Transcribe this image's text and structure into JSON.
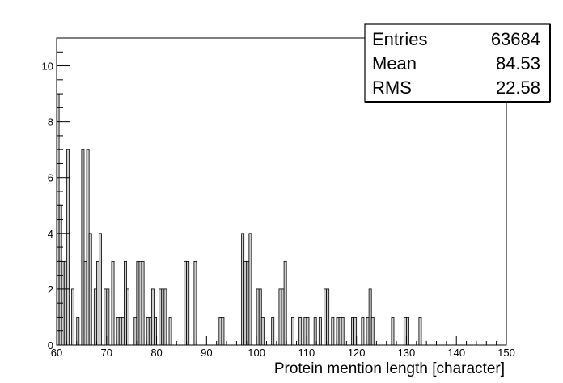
{
  "chart_data": {
    "type": "bar",
    "histogram": true,
    "title": "",
    "xlabel": "Protein mention length [character]",
    "ylabel": "",
    "xlim": [
      60,
      150
    ],
    "ylim": [
      0,
      11
    ],
    "bin_width": 0.5,
    "x_ticks": [
      60,
      70,
      80,
      90,
      100,
      110,
      120,
      130,
      140,
      150
    ],
    "y_ticks": [
      0,
      2,
      4,
      6,
      8,
      10
    ],
    "bin_starts": [
      60,
      60.5,
      61,
      61.5,
      62,
      62.5,
      63,
      63.5,
      64,
      64.5,
      65,
      65.5,
      66,
      66.5,
      67,
      67.5,
      68,
      68.5,
      69,
      69.5,
      70,
      70.5,
      71,
      71.5,
      72,
      72.5,
      73,
      73.5,
      74,
      74.5,
      75,
      75.5,
      76,
      76.5,
      77,
      77.5,
      78,
      78.5,
      79,
      79.5,
      80,
      80.5,
      81,
      81.5,
      82,
      82.5,
      83,
      83.5,
      84,
      84.5,
      85,
      85.5,
      86,
      86.5,
      87,
      87.5,
      88,
      88.5,
      89,
      89.5,
      90,
      90.5,
      91,
      91.5,
      92,
      92.5,
      93,
      93.5,
      94,
      94.5,
      95,
      95.5,
      96,
      96.5,
      97,
      97.5,
      98,
      98.5,
      99,
      99.5,
      100,
      100.5,
      101,
      101.5,
      102,
      102.5,
      103,
      103.5,
      104,
      104.5,
      105,
      105.5,
      106,
      106.5,
      107,
      107.5,
      108,
      108.5,
      109,
      109.5,
      110,
      110.5,
      111,
      111.5,
      112,
      112.5,
      113,
      113.5,
      114,
      114.5,
      115,
      115.5,
      116,
      116.5,
      117,
      117.5,
      118,
      118.5,
      119,
      119.5,
      120,
      120.5,
      121,
      121.5,
      122,
      122.5,
      123,
      123.5,
      124,
      124.5,
      125,
      125.5,
      126,
      126.5,
      127,
      127.5,
      128,
      128.5,
      129,
      129.5,
      130,
      130.5,
      131,
      131.5,
      132,
      132.5,
      133,
      133.5,
      134,
      134.5,
      135,
      135.5,
      136,
      136.5,
      137,
      137.5,
      138,
      138.5,
      139,
      139.5,
      140,
      140.5,
      141,
      141.5,
      142,
      142.5,
      143,
      143.5,
      144,
      144.5,
      145,
      145.5,
      146,
      146.5,
      147,
      147.5,
      148,
      148.5,
      149,
      149.5
    ],
    "values": [
      9,
      5,
      3,
      3,
      7,
      0,
      2,
      0,
      1,
      0,
      7,
      3,
      7,
      4,
      0,
      2,
      3,
      4,
      0,
      2,
      2,
      0,
      3,
      0,
      1,
      1,
      1,
      3,
      2,
      0,
      0,
      1,
      3,
      3,
      3,
      0,
      1,
      1,
      2,
      1,
      0,
      2,
      2,
      2,
      0,
      1,
      0,
      0,
      0,
      0,
      0,
      3,
      3,
      0,
      0,
      3,
      0,
      0,
      0,
      0,
      0,
      0,
      0,
      0,
      0,
      1,
      1,
      0,
      0,
      0,
      0,
      0,
      0,
      0,
      4,
      3,
      3,
      4,
      0,
      0,
      2,
      2,
      1,
      0,
      0,
      0,
      1,
      0,
      0,
      2,
      2,
      3,
      0,
      0,
      1,
      0,
      0,
      1,
      0,
      1,
      1,
      0,
      0,
      1,
      0,
      1,
      0,
      2,
      2,
      0,
      1,
      0,
      1,
      1,
      1,
      0,
      0,
      0,
      1,
      1,
      0,
      0,
      1,
      0,
      1,
      2,
      1,
      0,
      0,
      0,
      0,
      0,
      0,
      0,
      1,
      0,
      0,
      0,
      0,
      1,
      1,
      0,
      0,
      0,
      0,
      1,
      0,
      0,
      0,
      0,
      0,
      0,
      0,
      0,
      0,
      0,
      0,
      0,
      0,
      0,
      0,
      0,
      0,
      0,
      0,
      0,
      0,
      0,
      0,
      0,
      0,
      0,
      0,
      0,
      0,
      0,
      0,
      0,
      0,
      0
    ],
    "grid": false,
    "bar_fill": "#cccccc",
    "bar_stroke": "#000000",
    "stats_box": {
      "entries_label": "Entries",
      "entries_value": "63684",
      "mean_label": "Mean",
      "mean_value": "84.53",
      "rms_label": "RMS",
      "rms_value": "22.58"
    }
  }
}
